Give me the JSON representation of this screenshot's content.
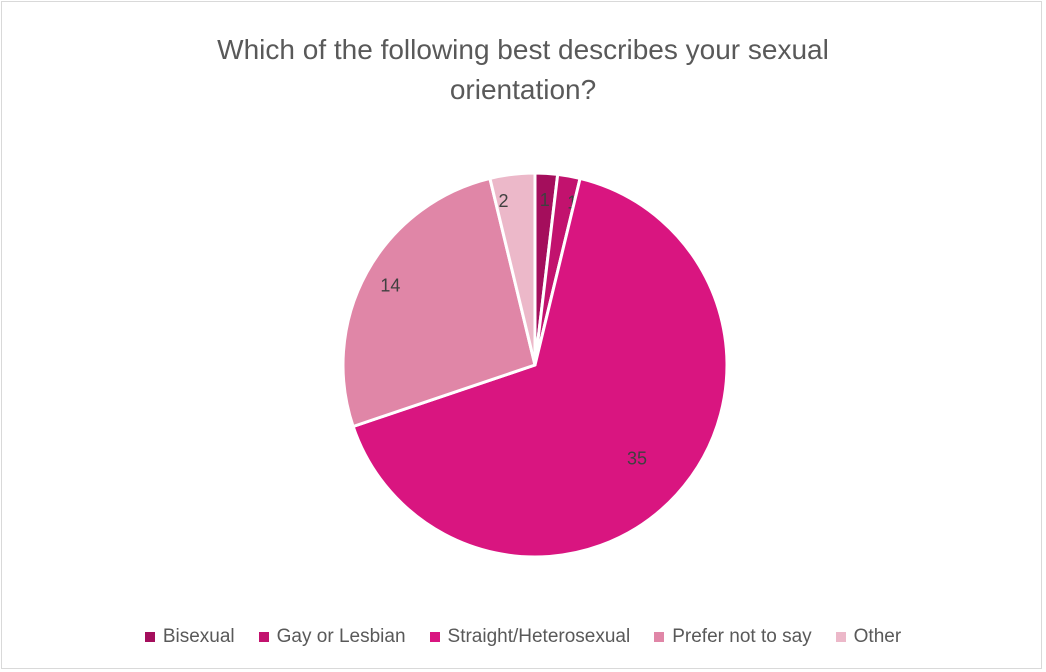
{
  "chart_data": {
    "type": "pie",
    "title": "Which of the following best describes your sexual orientation?",
    "title_lines": [
      "Which of the following best describes your sexual",
      "orientation?"
    ],
    "categories": [
      "Bisexual",
      "Gay or Lesbian",
      "Straight/Heterosexual",
      "Prefer not to say",
      "Other"
    ],
    "values": [
      1,
      1,
      35,
      14,
      2
    ],
    "colors": [
      "#a40e5c",
      "#c2126e",
      "#d91580",
      "#e086a7",
      "#ecb8c9"
    ],
    "data_labels": [
      "1",
      "1",
      "35",
      "14",
      "2"
    ],
    "legend_position": "bottom",
    "start_angle_deg": 0,
    "direction": "clockwise"
  }
}
